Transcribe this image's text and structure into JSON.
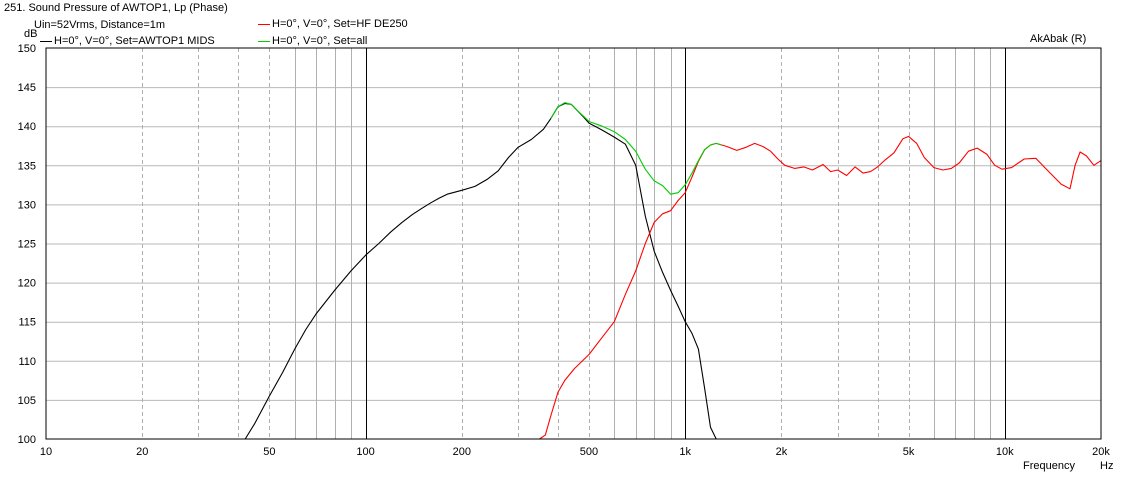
{
  "chart_data": {
    "type": "line",
    "title": "251. Sound Pressure of AWTOP1, Lp (Phase)",
    "subtitle": "Uin=52Vrms, Distance=1m",
    "watermark": "AkAbak (R)",
    "ylabel": "dB",
    "xlabel": "Frequency",
    "xunit": "Hz",
    "x_scale": "log",
    "xlim": [
      10,
      20000
    ],
    "ylim": [
      100,
      150
    ],
    "yticks": [
      100,
      105,
      110,
      115,
      120,
      125,
      130,
      135,
      140,
      145,
      150
    ],
    "ytick_labels": [
      "100",
      "105",
      "110",
      "115",
      "120",
      "125",
      "130",
      "135",
      "140",
      "145",
      "150"
    ],
    "xticks": [
      10,
      20,
      50,
      100,
      200,
      500,
      1000,
      2000,
      5000,
      10000,
      20000
    ],
    "xtick_labels": [
      "10",
      "20",
      "50",
      "100",
      "200",
      "500",
      "1k",
      "2k",
      "5k",
      "10k",
      "20k"
    ],
    "grid": true,
    "legend_position": "top",
    "series": [
      {
        "name": "H=0°, V=0°, Set=AWTOP1 MIDS",
        "color": "#000000",
        "points": [
          [
            42,
            100
          ],
          [
            45,
            102
          ],
          [
            50,
            105.5
          ],
          [
            55,
            108.5
          ],
          [
            60,
            111.5
          ],
          [
            65,
            114
          ],
          [
            70,
            116
          ],
          [
            80,
            119
          ],
          [
            90,
            121.5
          ],
          [
            100,
            123.5
          ],
          [
            110,
            125
          ],
          [
            120,
            126.5
          ],
          [
            130,
            127.7
          ],
          [
            140,
            128.7
          ],
          [
            150,
            129.5
          ],
          [
            160,
            130.2
          ],
          [
            170,
            130.8
          ],
          [
            180,
            131.3
          ],
          [
            200,
            131.8
          ],
          [
            220,
            132.3
          ],
          [
            240,
            133.2
          ],
          [
            260,
            134.3
          ],
          [
            280,
            136
          ],
          [
            300,
            137.3
          ],
          [
            330,
            138.3
          ],
          [
            360,
            139.6
          ],
          [
            380,
            141
          ],
          [
            400,
            142.5
          ],
          [
            420,
            142.9
          ],
          [
            440,
            142.8
          ],
          [
            460,
            142
          ],
          [
            480,
            141.2
          ],
          [
            500,
            140.4
          ],
          [
            550,
            139.5
          ],
          [
            600,
            138.6
          ],
          [
            650,
            137.7
          ],
          [
            700,
            135
          ],
          [
            750,
            128.5
          ],
          [
            800,
            124
          ],
          [
            850,
            121.3
          ],
          [
            900,
            119
          ],
          [
            950,
            117
          ],
          [
            1000,
            115
          ],
          [
            1050,
            113.5
          ],
          [
            1100,
            111.5
          ],
          [
            1150,
            106.5
          ],
          [
            1200,
            101.5
          ],
          [
            1250,
            100
          ]
        ]
      },
      {
        "name": "H=0°, V=0°, Set=HF DE250",
        "color": "#ff0000",
        "points": [
          [
            10,
            100
          ],
          [
            350,
            100
          ],
          [
            365,
            100.5
          ],
          [
            380,
            103
          ],
          [
            400,
            106
          ],
          [
            420,
            107.5
          ],
          [
            450,
            109
          ],
          [
            500,
            110.8
          ],
          [
            550,
            113
          ],
          [
            600,
            115
          ],
          [
            650,
            118.5
          ],
          [
            700,
            121.5
          ],
          [
            750,
            125
          ],
          [
            800,
            127.7
          ],
          [
            850,
            128.8
          ],
          [
            900,
            129.2
          ],
          [
            950,
            130.5
          ],
          [
            1000,
            131.5
          ],
          [
            1050,
            133.5
          ],
          [
            1100,
            135.5
          ],
          [
            1150,
            137
          ],
          [
            1200,
            137.6
          ],
          [
            1250,
            137.8
          ],
          [
            1350,
            137.4
          ],
          [
            1450,
            136.9
          ],
          [
            1550,
            137.3
          ],
          [
            1650,
            137.8
          ],
          [
            1750,
            137.4
          ],
          [
            1850,
            136.8
          ],
          [
            1950,
            135.8
          ],
          [
            2050,
            135
          ],
          [
            2200,
            134.6
          ],
          [
            2350,
            134.8
          ],
          [
            2500,
            134.4
          ],
          [
            2700,
            135.1
          ],
          [
            2850,
            134.2
          ],
          [
            3000,
            134.4
          ],
          [
            3200,
            133.7
          ],
          [
            3400,
            134.8
          ],
          [
            3600,
            134
          ],
          [
            3800,
            134.2
          ],
          [
            4000,
            134.8
          ],
          [
            4200,
            135.6
          ],
          [
            4500,
            136.6
          ],
          [
            4800,
            138.4
          ],
          [
            5000,
            138.7
          ],
          [
            5300,
            137.8
          ],
          [
            5600,
            136
          ],
          [
            6000,
            134.7
          ],
          [
            6400,
            134.4
          ],
          [
            6800,
            134.6
          ],
          [
            7200,
            135.3
          ],
          [
            7700,
            136.8
          ],
          [
            8200,
            137.2
          ],
          [
            8800,
            136.4
          ],
          [
            9300,
            135
          ],
          [
            9800,
            134.5
          ],
          [
            10500,
            134.7
          ],
          [
            11500,
            135.8
          ],
          [
            12500,
            135.9
          ],
          [
            13500,
            134.5
          ],
          [
            15000,
            132.6
          ],
          [
            16000,
            132
          ],
          [
            16600,
            135
          ],
          [
            17200,
            136.7
          ],
          [
            18000,
            136.2
          ],
          [
            19000,
            135
          ],
          [
            20000,
            135.6
          ]
        ]
      },
      {
        "name": "H=0°, V=0°, Set=all",
        "color": "#00cc00",
        "points": [
          [
            380,
            141
          ],
          [
            400,
            142.5
          ],
          [
            420,
            143
          ],
          [
            440,
            142.8
          ],
          [
            460,
            142
          ],
          [
            480,
            141.3
          ],
          [
            500,
            140.6
          ],
          [
            550,
            140
          ],
          [
            600,
            139.3
          ],
          [
            650,
            138.3
          ],
          [
            700,
            136.8
          ],
          [
            750,
            134.5
          ],
          [
            800,
            133
          ],
          [
            850,
            132.4
          ],
          [
            900,
            131.3
          ],
          [
            950,
            131.5
          ],
          [
            1000,
            132.5
          ],
          [
            1050,
            134
          ],
          [
            1100,
            135.6
          ],
          [
            1150,
            137
          ],
          [
            1200,
            137.6
          ],
          [
            1250,
            137.8
          ],
          [
            1300,
            137.6
          ]
        ]
      }
    ]
  }
}
